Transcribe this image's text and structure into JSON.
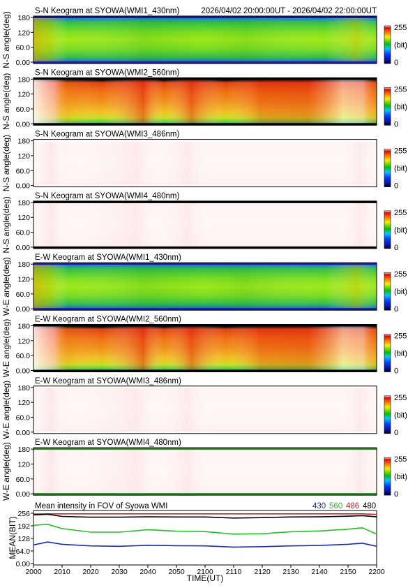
{
  "header": {
    "time_range": "2026/04/02 20:00:00UT - 2026/04/02 22:00:00UT"
  },
  "keograms": [
    {
      "title": "S-N Keogram at SYOWA(WMI1_430nm)",
      "ylabel": "N-S angle(deg)",
      "profile": "green",
      "edge_color": "#1a1aa0"
    },
    {
      "title": "S-N Keogram at SYOWA(WMI2_560nm)",
      "ylabel": "N-S angle(deg)",
      "profile": "red",
      "edge_color": "#000000"
    },
    {
      "title": "S-N Keogram at SYOWA(WMI3_486nm)",
      "ylabel": "N-S angle(deg)",
      "profile": "pale",
      "edge_color": "#ffffff"
    },
    {
      "title": "S-N Keogram at SYOWA(WMI4_480nm)",
      "ylabel": "N-S angle(deg)",
      "profile": "pale",
      "edge_color": "#000000"
    },
    {
      "title": "E-W Keogram at SYOWA(WMI1_430nm)",
      "ylabel": "W-E angle(deg)",
      "profile": "green",
      "edge_color": "#1a1aa0"
    },
    {
      "title": "E-W Keogram at SYOWA(WMI2_560nm)",
      "ylabel": "W-E angle(deg)",
      "profile": "red",
      "edge_color": "#000000"
    },
    {
      "title": "E-W Keogram at SYOWA(WMI3_486nm)",
      "ylabel": "W-E angle(deg)",
      "profile": "pale",
      "edge_color": "#ffffff"
    },
    {
      "title": "E-W Keogram at SYOWA(WMI4_480nm)",
      "ylabel": "W-E angle(deg)",
      "profile": "pale",
      "edge_color": "#2a8a2a"
    }
  ],
  "keogram_yticks": [
    "0.00",
    "60.0",
    "120",
    "180"
  ],
  "colorbar": {
    "max_label": "255",
    "unit_label": "(bit)",
    "min_label": "0"
  },
  "mean_panel": {
    "title": "Mean intensity in FOV of Syowa WMI",
    "legend": [
      {
        "label": "430",
        "color": "#1a2eb0"
      },
      {
        "label": "560",
        "color": "#22c022"
      },
      {
        "label": "486",
        "color": "#d02020"
      },
      {
        "label": "480",
        "color": "#000000"
      }
    ],
    "ylabel": "MEAN(BIT)",
    "yticks": [
      "0.00",
      "64.0",
      "128",
      "192",
      "256"
    ]
  },
  "chart_data": {
    "type": "line",
    "title": "Mean intensity in FOV of Syowa WMI",
    "xlabel": "TIME(UT)",
    "ylabel": "MEAN(BIT)",
    "x_ticks": [
      "2000",
      "2010",
      "2020",
      "2030",
      "2040",
      "2050",
      "2100",
      "2110",
      "2120",
      "2130",
      "2140",
      "2150",
      "2200"
    ],
    "x_minutes": [
      0,
      5,
      10,
      20,
      30,
      40,
      50,
      60,
      70,
      80,
      90,
      100,
      110,
      115,
      120
    ],
    "ylim": [
      0,
      256
    ],
    "series": [
      {
        "name": "430",
        "color": "#1a2eb0",
        "values": [
          95,
          110,
          98,
          90,
          88,
          93,
          91,
          90,
          84,
          86,
          90,
          92,
          98,
          104,
          88
        ]
      },
      {
        "name": "560",
        "color": "#22c022",
        "values": [
          195,
          200,
          178,
          160,
          160,
          172,
          165,
          163,
          150,
          152,
          162,
          166,
          175,
          182,
          150
        ]
      },
      {
        "name": "486",
        "color": "#d02020",
        "values": [
          252,
          253,
          253,
          253,
          253,
          253,
          253,
          253,
          253,
          253,
          253,
          253,
          253,
          253,
          250
        ]
      },
      {
        "name": "480",
        "color": "#000000",
        "values": [
          248,
          251,
          240,
          236,
          236,
          238,
          237,
          237,
          232,
          234,
          237,
          238,
          241,
          244,
          238
        ]
      }
    ]
  }
}
